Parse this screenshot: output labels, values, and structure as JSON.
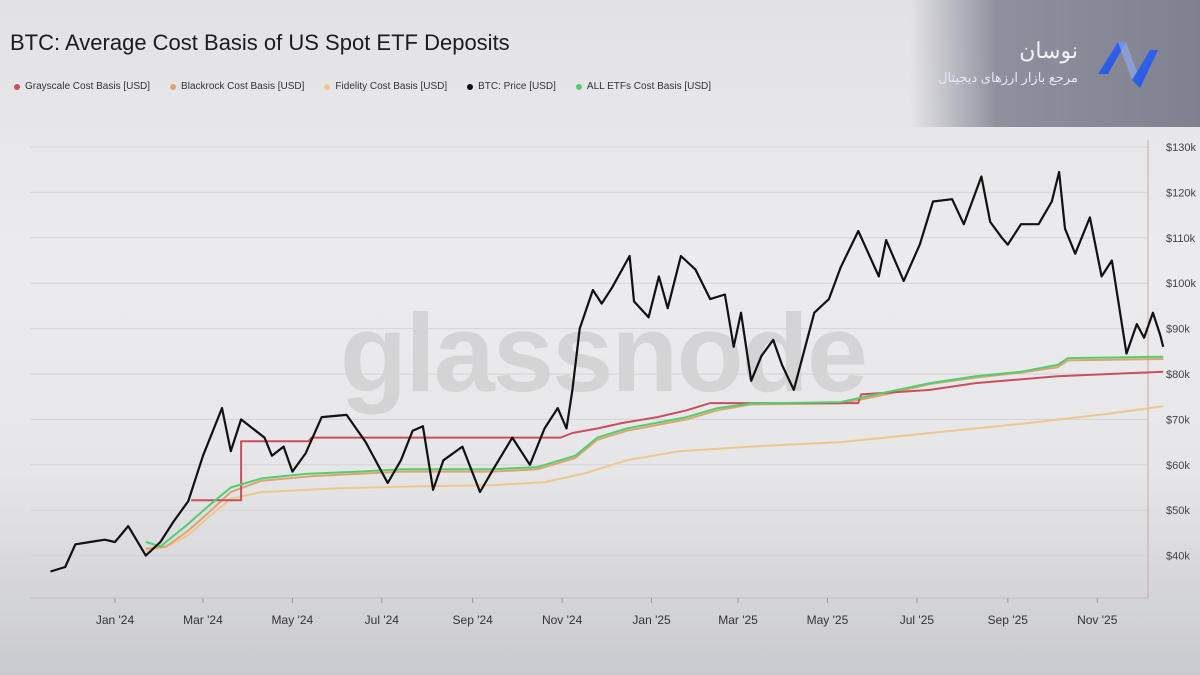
{
  "brand": {
    "name": "نوسان",
    "tagline": "مرجع بازار ارزهای دیجیتال",
    "watermark": "glassnode"
  },
  "chart_data": {
    "type": "line",
    "title": "BTC: Average Cost Basis of US Spot ETF Deposits",
    "xlabel": "",
    "ylabel": "",
    "ylim": [
      35000,
      131000
    ],
    "yscale": "linear",
    "y_axis_position": "right",
    "yticks": [
      40000,
      50000,
      60000,
      70000,
      80000,
      90000,
      100000,
      110000,
      120000,
      130000
    ],
    "ytick_labels": [
      "$40k",
      "$50k",
      "$60k",
      "$70k",
      "$80k",
      "$90k",
      "$100k",
      "$110k",
      "$120k",
      "$130k"
    ],
    "xlim": [
      "2023-11-15",
      "2025-12-18"
    ],
    "xticks": [
      "2024-01-01",
      "2024-03-01",
      "2024-05-01",
      "2024-07-01",
      "2024-09-01",
      "2024-11-01",
      "2025-01-01",
      "2025-03-01",
      "2025-05-01",
      "2025-07-01",
      "2025-09-01",
      "2025-11-01"
    ],
    "xtick_labels": [
      "Jan '24",
      "Mar '24",
      "May '24",
      "Jul '24",
      "Sep '24",
      "Nov '24",
      "Jan '25",
      "Mar '25",
      "May '25",
      "Jul '25",
      "Sep '25",
      "Nov '25"
    ],
    "grid": true,
    "legend": "top-left",
    "series": [
      {
        "name": "Grayscale Cost Basis [USD]",
        "color": "#c8505e",
        "step": true,
        "points": [
          [
            "2024-02-22",
            52200
          ],
          [
            "2024-03-27",
            52200
          ],
          [
            "2024-03-27",
            65200
          ],
          [
            "2024-05-12",
            65200
          ],
          [
            "2024-05-14",
            66000
          ],
          [
            "2024-10-31",
            66000
          ],
          [
            "2024-11-08",
            67000
          ],
          [
            "2024-11-25",
            68000
          ],
          [
            "2024-12-12",
            69200
          ],
          [
            "2025-01-05",
            70500
          ],
          [
            "2025-01-25",
            72000
          ],
          [
            "2025-02-10",
            73600
          ],
          [
            "2025-05-22",
            73600
          ],
          [
            "2025-05-24",
            75500
          ],
          [
            "2025-07-10",
            76500
          ],
          [
            "2025-08-10",
            78000
          ],
          [
            "2025-10-05",
            79500
          ],
          [
            "2025-12-16",
            80500
          ]
        ]
      },
      {
        "name": "Blackrock Cost Basis [USD]",
        "color": "#e0a273",
        "points": [
          [
            "2024-01-22",
            41500
          ],
          [
            "2024-02-05",
            42000
          ],
          [
            "2024-02-20",
            45500
          ],
          [
            "2024-03-05",
            49500
          ],
          [
            "2024-03-20",
            54000
          ],
          [
            "2024-04-10",
            56500
          ],
          [
            "2024-05-15",
            57500
          ],
          [
            "2024-07-15",
            58500
          ],
          [
            "2024-09-15",
            58500
          ],
          [
            "2024-10-15",
            59000
          ],
          [
            "2024-11-10",
            61500
          ],
          [
            "2024-11-25",
            65500
          ],
          [
            "2024-12-15",
            67500
          ],
          [
            "2025-01-25",
            70000
          ],
          [
            "2025-02-15",
            72000
          ],
          [
            "2025-03-10",
            73300
          ],
          [
            "2025-05-10",
            73500
          ],
          [
            "2025-06-10",
            75500
          ],
          [
            "2025-07-10",
            77800
          ],
          [
            "2025-08-10",
            79200
          ],
          [
            "2025-09-10",
            80300
          ],
          [
            "2025-10-05",
            81500
          ],
          [
            "2025-10-12",
            83000
          ],
          [
            "2025-12-16",
            83300
          ]
        ]
      },
      {
        "name": "Fidelity Cost Basis [USD]",
        "color": "#ebc98d",
        "points": [
          [
            "2024-01-22",
            41000
          ],
          [
            "2024-02-05",
            42000
          ],
          [
            "2024-02-20",
            44500
          ],
          [
            "2024-03-05",
            48500
          ],
          [
            "2024-03-20",
            52500
          ],
          [
            "2024-04-10",
            54000
          ],
          [
            "2024-06-01",
            54800
          ],
          [
            "2024-08-01",
            55300
          ],
          [
            "2024-09-15",
            55500
          ],
          [
            "2024-10-20",
            56200
          ],
          [
            "2024-11-15",
            58000
          ],
          [
            "2024-12-15",
            61000
          ],
          [
            "2025-01-20",
            63000
          ],
          [
            "2025-03-10",
            64000
          ],
          [
            "2025-05-10",
            65000
          ],
          [
            "2025-07-10",
            67000
          ],
          [
            "2025-09-10",
            69000
          ],
          [
            "2025-11-10",
            71300
          ],
          [
            "2025-12-16",
            72900
          ]
        ]
      },
      {
        "name": "BTC: Price [USD]",
        "color": "#111111",
        "points": [
          [
            "2023-11-18",
            36500
          ],
          [
            "2023-11-28",
            37500
          ],
          [
            "2023-12-05",
            42500
          ],
          [
            "2023-12-15",
            43000
          ],
          [
            "2023-12-25",
            43500
          ],
          [
            "2024-01-01",
            43000
          ],
          [
            "2024-01-10",
            46500
          ],
          [
            "2024-01-22",
            40000
          ],
          [
            "2024-02-01",
            43000
          ],
          [
            "2024-02-10",
            47500
          ],
          [
            "2024-02-20",
            52000
          ],
          [
            "2024-03-01",
            62000
          ],
          [
            "2024-03-14",
            72500
          ],
          [
            "2024-03-20",
            63000
          ],
          [
            "2024-03-27",
            70000
          ],
          [
            "2024-04-12",
            66000
          ],
          [
            "2024-04-17",
            62000
          ],
          [
            "2024-04-25",
            64000
          ],
          [
            "2024-05-01",
            58500
          ],
          [
            "2024-05-10",
            62500
          ],
          [
            "2024-05-21",
            70500
          ],
          [
            "2024-06-07",
            71000
          ],
          [
            "2024-06-20",
            65000
          ],
          [
            "2024-07-05",
            56000
          ],
          [
            "2024-07-14",
            61000
          ],
          [
            "2024-07-22",
            67500
          ],
          [
            "2024-07-29",
            68500
          ],
          [
            "2024-08-05",
            54500
          ],
          [
            "2024-08-12",
            61000
          ],
          [
            "2024-08-25",
            64000
          ],
          [
            "2024-09-06",
            54000
          ],
          [
            "2024-09-15",
            59000
          ],
          [
            "2024-09-28",
            66000
          ],
          [
            "2024-10-10",
            60000
          ],
          [
            "2024-10-20",
            68000
          ],
          [
            "2024-10-29",
            72500
          ],
          [
            "2024-11-04",
            68000
          ],
          [
            "2024-11-08",
            76500
          ],
          [
            "2024-11-13",
            90000
          ],
          [
            "2024-11-22",
            98500
          ],
          [
            "2024-11-28",
            95500
          ],
          [
            "2024-12-05",
            99000
          ],
          [
            "2024-12-17",
            106000
          ],
          [
            "2024-12-20",
            96000
          ],
          [
            "2024-12-30",
            92500
          ],
          [
            "2025-01-06",
            101500
          ],
          [
            "2025-01-12",
            94500
          ],
          [
            "2025-01-21",
            106000
          ],
          [
            "2025-01-31",
            103000
          ],
          [
            "2025-02-10",
            96500
          ],
          [
            "2025-02-20",
            97500
          ],
          [
            "2025-02-26",
            86000
          ],
          [
            "2025-03-03",
            93500
          ],
          [
            "2025-03-10",
            78500
          ],
          [
            "2025-03-17",
            84000
          ],
          [
            "2025-03-25",
            87500
          ],
          [
            "2025-03-31",
            82000
          ],
          [
            "2025-04-08",
            76500
          ],
          [
            "2025-04-22",
            93500
          ],
          [
            "2025-05-02",
            96500
          ],
          [
            "2025-05-10",
            103500
          ],
          [
            "2025-05-22",
            111500
          ],
          [
            "2025-06-05",
            101500
          ],
          [
            "2025-06-10",
            109500
          ],
          [
            "2025-06-22",
            100500
          ],
          [
            "2025-07-03",
            108500
          ],
          [
            "2025-07-12",
            118000
          ],
          [
            "2025-07-25",
            118500
          ],
          [
            "2025-08-02",
            113000
          ],
          [
            "2025-08-14",
            123500
          ],
          [
            "2025-08-20",
            113500
          ],
          [
            "2025-08-28",
            110000
          ],
          [
            "2025-09-01",
            108500
          ],
          [
            "2025-09-10",
            113000
          ],
          [
            "2025-09-22",
            113000
          ],
          [
            "2025-10-01",
            118000
          ],
          [
            "2025-10-06",
            124500
          ],
          [
            "2025-10-10",
            112000
          ],
          [
            "2025-10-17",
            106500
          ],
          [
            "2025-10-27",
            114500
          ],
          [
            "2025-11-04",
            101500
          ],
          [
            "2025-11-11",
            105000
          ],
          [
            "2025-11-21",
            84500
          ],
          [
            "2025-11-28",
            91000
          ],
          [
            "2025-12-03",
            88000
          ],
          [
            "2025-12-09",
            93500
          ],
          [
            "2025-12-14",
            88500
          ],
          [
            "2025-12-16",
            86000
          ]
        ]
      },
      {
        "name": "ALL ETFs Cost Basis [USD]",
        "color": "#4fcf6f",
        "points": [
          [
            "2024-01-22",
            43000
          ],
          [
            "2024-02-01",
            42000
          ],
          [
            "2024-02-20",
            47000
          ],
          [
            "2024-03-05",
            51000
          ],
          [
            "2024-03-20",
            55000
          ],
          [
            "2024-04-10",
            57000
          ],
          [
            "2024-05-10",
            58000
          ],
          [
            "2024-06-15",
            58500
          ],
          [
            "2024-07-15",
            59000
          ],
          [
            "2024-09-15",
            59000
          ],
          [
            "2024-10-15",
            59500
          ],
          [
            "2024-11-10",
            62000
          ],
          [
            "2024-11-25",
            66000
          ],
          [
            "2024-12-15",
            68000
          ],
          [
            "2025-01-25",
            70500
          ],
          [
            "2025-02-15",
            72500
          ],
          [
            "2025-03-10",
            73500
          ],
          [
            "2025-05-10",
            73800
          ],
          [
            "2025-06-10",
            76000
          ],
          [
            "2025-07-10",
            78000
          ],
          [
            "2025-08-10",
            79500
          ],
          [
            "2025-09-10",
            80500
          ],
          [
            "2025-10-05",
            82000
          ],
          [
            "2025-10-12",
            83500
          ],
          [
            "2025-12-16",
            83800
          ]
        ]
      }
    ]
  }
}
